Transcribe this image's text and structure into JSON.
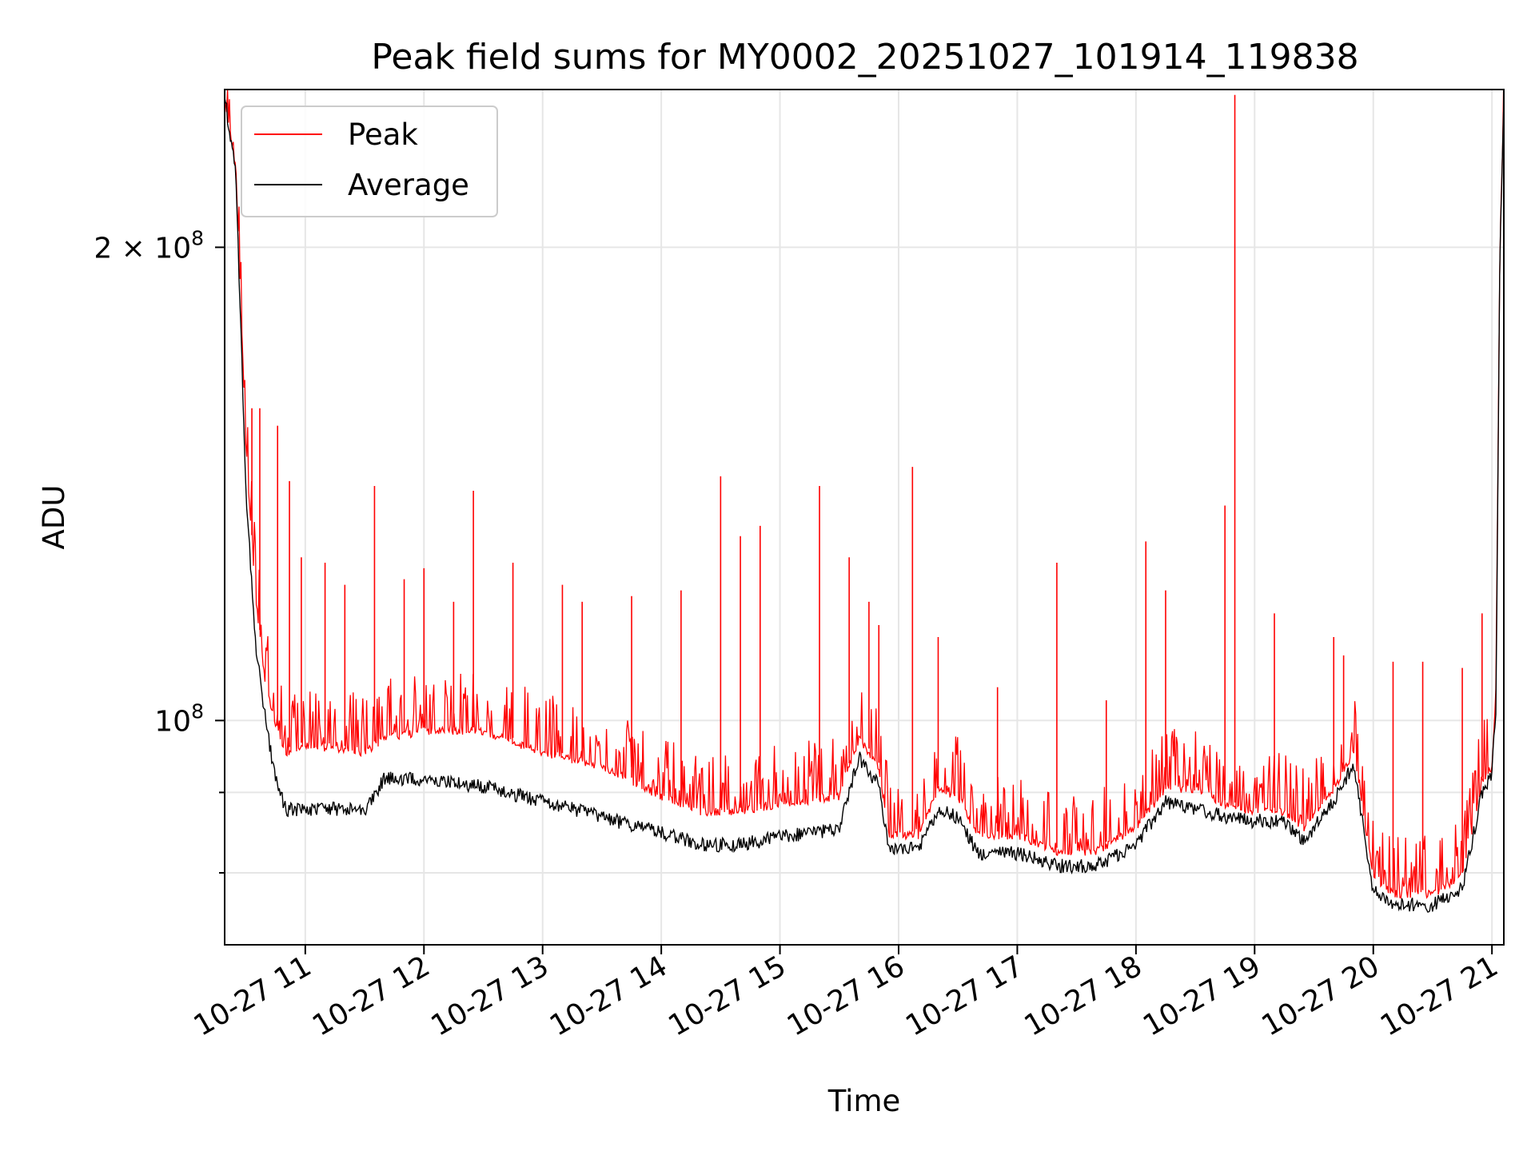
{
  "chart_data": {
    "type": "line",
    "title": "Peak field sums for MY0002_20251027_101914_119838",
    "xlabel": "Time",
    "ylabel": "ADU",
    "y_scale": "log",
    "grid": true,
    "legend_position": "upper-left",
    "x_range": [
      "2025-10-27 10:19:14",
      "2025-10-27 21:06"
    ],
    "ylim": [
      72000000,
      252000000
    ],
    "x_ticks": [
      {
        "value": "2025-10-27 11:00",
        "label": "10-27 11"
      },
      {
        "value": "2025-10-27 12:00",
        "label": "10-27 12"
      },
      {
        "value": "2025-10-27 13:00",
        "label": "10-27 13"
      },
      {
        "value": "2025-10-27 14:00",
        "label": "10-27 14"
      },
      {
        "value": "2025-10-27 15:00",
        "label": "10-27 15"
      },
      {
        "value": "2025-10-27 16:00",
        "label": "10-27 16"
      },
      {
        "value": "2025-10-27 17:00",
        "label": "10-27 17"
      },
      {
        "value": "2025-10-27 18:00",
        "label": "10-27 18"
      },
      {
        "value": "2025-10-27 19:00",
        "label": "10-27 19"
      },
      {
        "value": "2025-10-27 20:00",
        "label": "10-27 20"
      },
      {
        "value": "2025-10-27 21:00",
        "label": "10-27 21"
      }
    ],
    "y_ticks": [
      {
        "value": 200000000,
        "label": "2 × 10",
        "exp": "8"
      },
      {
        "value": 100000000,
        "label": "10",
        "exp": "8"
      }
    ],
    "y_minor_ticks": [
      90000000,
      80000000
    ],
    "series": [
      {
        "name": "Peak",
        "color": "#ff0000",
        "points": [
          [
            "2025-10-27 10:19:14",
            250000000
          ],
          [
            "2025-10-27 10:25",
            225000000
          ],
          [
            "2025-10-27 10:30",
            150000000
          ],
          [
            "2025-10-27 10:35",
            120000000
          ],
          [
            "2025-10-27 10:40",
            106000000
          ],
          [
            "2025-10-27 10:45",
            100000000
          ],
          [
            "2025-10-27 10:50",
            96000000
          ],
          [
            "2025-10-27 11:00",
            97000000
          ],
          [
            "2025-10-27 11:30",
            96000000
          ],
          [
            "2025-10-27 11:40",
            98000000
          ],
          [
            "2025-10-27 12:00",
            99000000
          ],
          [
            "2025-10-27 12:30",
            99000000
          ],
          [
            "2025-10-27 13:00",
            96000000
          ],
          [
            "2025-10-27 13:30",
            94000000
          ],
          [
            "2025-10-27 14:00",
            90000000
          ],
          [
            "2025-10-27 14:20",
            88000000
          ],
          [
            "2025-10-27 14:40",
            88000000
          ],
          [
            "2025-10-27 15:00",
            89000000
          ],
          [
            "2025-10-27 15:30",
            90000000
          ],
          [
            "2025-10-27 15:40",
            98000000
          ],
          [
            "2025-10-27 15:50",
            94000000
          ],
          [
            "2025-10-27 15:55",
            85000000
          ],
          [
            "2025-10-27 16:10",
            85000000
          ],
          [
            "2025-10-27 16:20",
            91000000
          ],
          [
            "2025-10-27 16:30",
            90000000
          ],
          [
            "2025-10-27 16:40",
            85000000
          ],
          [
            "2025-10-27 17:00",
            85000000
          ],
          [
            "2025-10-27 17:20",
            83000000
          ],
          [
            "2025-10-27 17:40",
            83000000
          ],
          [
            "2025-10-27 18:00",
            86000000
          ],
          [
            "2025-10-27 18:15",
            91000000
          ],
          [
            "2025-10-27 18:30",
            91000000
          ],
          [
            "2025-10-27 18:45",
            89000000
          ],
          [
            "2025-10-27 19:00",
            88000000
          ],
          [
            "2025-10-27 19:15",
            88000000
          ],
          [
            "2025-10-27 19:25",
            86000000
          ],
          [
            "2025-10-27 19:40",
            91000000
          ],
          [
            "2025-10-27 19:50",
            96000000
          ],
          [
            "2025-10-27 20:00",
            80000000
          ],
          [
            "2025-10-27 20:10",
            78000000
          ],
          [
            "2025-10-27 20:30",
            78000000
          ],
          [
            "2025-10-27 20:45",
            80000000
          ],
          [
            "2025-10-27 20:55",
            92000000
          ],
          [
            "2025-10-27 21:00",
            94000000
          ],
          [
            "2025-10-27 21:02",
            105000000
          ],
          [
            "2025-10-27 21:04",
            200000000
          ],
          [
            "2025-10-27 21:06",
            250000000
          ]
        ],
        "spikes": [
          [
            "2025-10-27 10:33",
            158000000
          ],
          [
            "2025-10-27 10:37",
            158000000
          ],
          [
            "2025-10-27 10:46",
            154000000
          ],
          [
            "2025-10-27 10:52",
            142000000
          ],
          [
            "2025-10-27 10:58",
            127000000
          ],
          [
            "2025-10-27 11:10",
            126000000
          ],
          [
            "2025-10-27 11:20",
            122000000
          ],
          [
            "2025-10-27 11:35",
            141000000
          ],
          [
            "2025-10-27 11:50",
            123000000
          ],
          [
            "2025-10-27 12:00",
            125000000
          ],
          [
            "2025-10-27 12:15",
            119000000
          ],
          [
            "2025-10-27 12:25",
            140000000
          ],
          [
            "2025-10-27 12:45",
            126000000
          ],
          [
            "2025-10-27 13:10",
            122000000
          ],
          [
            "2025-10-27 13:20",
            119000000
          ],
          [
            "2025-10-27 13:45",
            120000000
          ],
          [
            "2025-10-27 14:10",
            121000000
          ],
          [
            "2025-10-27 14:30",
            143000000
          ],
          [
            "2025-10-27 14:40",
            131000000
          ],
          [
            "2025-10-27 14:50",
            133000000
          ],
          [
            "2025-10-27 15:20",
            141000000
          ],
          [
            "2025-10-27 15:35",
            127000000
          ],
          [
            "2025-10-27 15:45",
            119000000
          ],
          [
            "2025-10-27 15:50",
            115000000
          ],
          [
            "2025-10-27 16:07",
            145000000
          ],
          [
            "2025-10-27 16:20",
            113000000
          ],
          [
            "2025-10-27 16:50",
            105000000
          ],
          [
            "2025-10-27 17:20",
            126000000
          ],
          [
            "2025-10-27 17:45",
            103000000
          ],
          [
            "2025-10-27 18:05",
            130000000
          ],
          [
            "2025-10-27 18:15",
            121000000
          ],
          [
            "2025-10-27 18:45",
            137000000
          ],
          [
            "2025-10-27 18:50",
            250000000
          ],
          [
            "2025-10-27 19:10",
            117000000
          ],
          [
            "2025-10-27 19:40",
            113000000
          ],
          [
            "2025-10-27 19:45",
            110000000
          ],
          [
            "2025-10-27 20:10",
            109000000
          ],
          [
            "2025-10-27 20:25",
            109000000
          ],
          [
            "2025-10-27 20:45",
            108000000
          ],
          [
            "2025-10-27 20:55",
            117000000
          ]
        ]
      },
      {
        "name": "Average",
        "color": "#000000",
        "points": [
          [
            "2025-10-27 10:19:14",
            250000000
          ],
          [
            "2025-10-27 10:25",
            222000000
          ],
          [
            "2025-10-27 10:30",
            140000000
          ],
          [
            "2025-10-27 10:35",
            112000000
          ],
          [
            "2025-10-27 10:40",
            100000000
          ],
          [
            "2025-10-27 10:45",
            92000000
          ],
          [
            "2025-10-27 10:50",
            88000000
          ],
          [
            "2025-10-27 11:00",
            88000000
          ],
          [
            "2025-10-27 11:30",
            88000000
          ],
          [
            "2025-10-27 11:40",
            92000000
          ],
          [
            "2025-10-27 12:00",
            92000000
          ],
          [
            "2025-10-27 12:30",
            91000000
          ],
          [
            "2025-10-27 13:00",
            89000000
          ],
          [
            "2025-10-27 13:30",
            87000000
          ],
          [
            "2025-10-27 14:00",
            85000000
          ],
          [
            "2025-10-27 14:20",
            83500000
          ],
          [
            "2025-10-27 14:40",
            83500000
          ],
          [
            "2025-10-27 15:00",
            84500000
          ],
          [
            "2025-10-27 15:30",
            85500000
          ],
          [
            "2025-10-27 15:40",
            95000000
          ],
          [
            "2025-10-27 15:50",
            91000000
          ],
          [
            "2025-10-27 15:55",
            83000000
          ],
          [
            "2025-10-27 16:10",
            83000000
          ],
          [
            "2025-10-27 16:20",
            88000000
          ],
          [
            "2025-10-27 16:30",
            87000000
          ],
          [
            "2025-10-27 16:40",
            82500000
          ],
          [
            "2025-10-27 17:00",
            82500000
          ],
          [
            "2025-10-27 17:20",
            81000000
          ],
          [
            "2025-10-27 17:40",
            81000000
          ],
          [
            "2025-10-27 18:00",
            83500000
          ],
          [
            "2025-10-27 18:15",
            89000000
          ],
          [
            "2025-10-27 18:30",
            88000000
          ],
          [
            "2025-10-27 18:45",
            87000000
          ],
          [
            "2025-10-27 19:00",
            86500000
          ],
          [
            "2025-10-27 19:15",
            86500000
          ],
          [
            "2025-10-27 19:25",
            84000000
          ],
          [
            "2025-10-27 19:40",
            89000000
          ],
          [
            "2025-10-27 19:50",
            94000000
          ],
          [
            "2025-10-27 20:00",
            78000000
          ],
          [
            "2025-10-27 20:10",
            76500000
          ],
          [
            "2025-10-27 20:30",
            76500000
          ],
          [
            "2025-10-27 20:45",
            78500000
          ],
          [
            "2025-10-27 20:55",
            90000000
          ],
          [
            "2025-10-27 21:00",
            93000000
          ],
          [
            "2025-10-27 21:02",
            102000000
          ],
          [
            "2025-10-27 21:04",
            198000000
          ],
          [
            "2025-10-27 21:06",
            250000000
          ]
        ]
      }
    ]
  }
}
